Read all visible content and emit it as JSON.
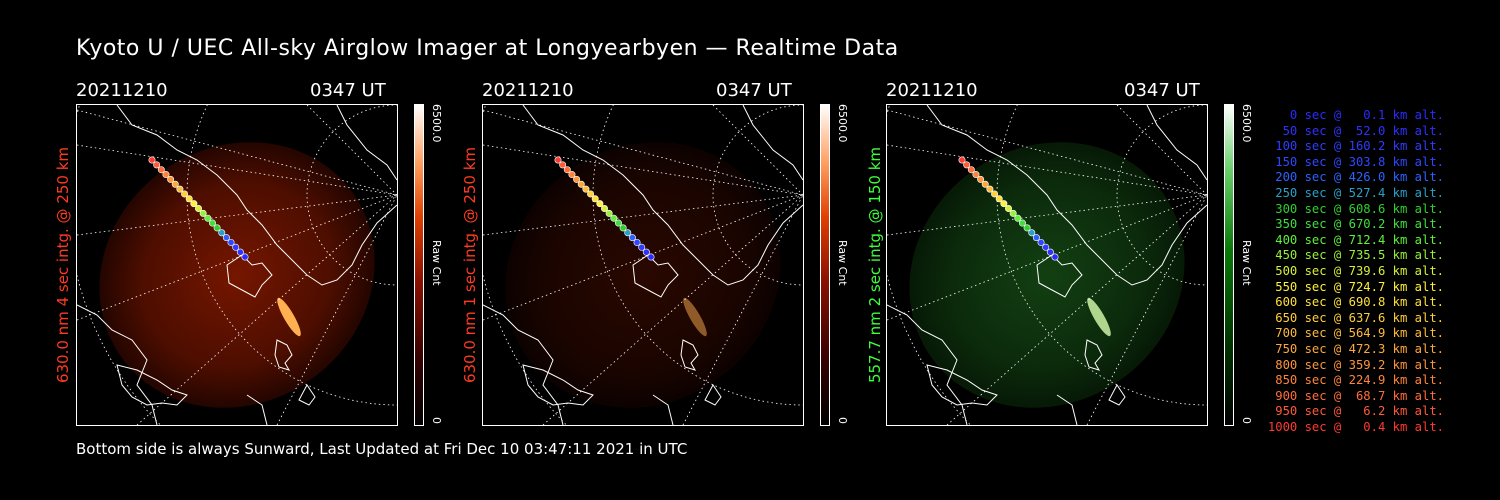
{
  "title": "Kyoto U / UEC All-sky Airglow Imager at Longyearbyen — Realtime Data",
  "footer": "Bottom side is always Sunward, Last Updated at Fri Dec 10 03:47:11 2021 in UTC",
  "panels": [
    {
      "date": "20211210",
      "time": "0347 UT",
      "ylabel": "630.0 nm 4 sec intg. @ 250 km",
      "ylabel_color": "#ff3b1f",
      "cbar_max": "6500.0",
      "cbar_min": "0",
      "cbar_unit": "Raw Cnt",
      "emission": "red",
      "brightness": 0.85
    },
    {
      "date": "20211210",
      "time": "0347 UT",
      "ylabel": "630.0 nm 1 sec intg. @ 250 km",
      "ylabel_color": "#ff3b1f",
      "cbar_max": "6500.0",
      "cbar_min": "0",
      "cbar_unit": "Raw Cnt",
      "emission": "red",
      "brightness": 0.3
    },
    {
      "date": "20211210",
      "time": "0347 UT",
      "ylabel": "557.7 nm 2 sec intg. @ 150 km",
      "ylabel_color": "#3cff3c",
      "cbar_max": "6500.0",
      "cbar_min": "0",
      "cbar_unit": "Raw Cnt",
      "emission": "green",
      "brightness": 0.6
    }
  ],
  "legend": [
    {
      "text": "0 sec @   0.1 km alt.",
      "color": "#2b2bff"
    },
    {
      "text": "50 sec @  52.0 km alt.",
      "color": "#3030ff"
    },
    {
      "text": "100 sec @ 160.2 km alt.",
      "color": "#2f3cff"
    },
    {
      "text": "150 sec @ 303.8 km alt.",
      "color": "#2f48ff"
    },
    {
      "text": "200 sec @ 426.0 km alt.",
      "color": "#2e62ff"
    },
    {
      "text": "250 sec @ 527.4 km alt.",
      "color": "#2aa0c8"
    },
    {
      "text": "300 sec @ 608.6 km alt.",
      "color": "#2fd02f"
    },
    {
      "text": "350 sec @ 670.2 km alt.",
      "color": "#3fe03f"
    },
    {
      "text": "400 sec @ 712.4 km alt.",
      "color": "#5ef03a"
    },
    {
      "text": "450 sec @ 735.5 km alt.",
      "color": "#9af03a"
    },
    {
      "text": "500 sec @ 739.6 km alt.",
      "color": "#d6f03a"
    },
    {
      "text": "550 sec @ 724.7 km alt.",
      "color": "#fff03a"
    },
    {
      "text": "600 sec @ 690.8 km alt.",
      "color": "#ffe03a"
    },
    {
      "text": "650 sec @ 637.6 km alt.",
      "color": "#ffd03a"
    },
    {
      "text": "700 sec @ 564.9 km alt.",
      "color": "#ffbb3a"
    },
    {
      "text": "750 sec @ 472.3 km alt.",
      "color": "#ffa83a"
    },
    {
      "text": "800 sec @ 359.2 km alt.",
      "color": "#ff963a"
    },
    {
      "text": "850 sec @ 224.9 km alt.",
      "color": "#ff843a"
    },
    {
      "text": "900 sec @  68.7 km alt.",
      "color": "#ff6e3a"
    },
    {
      "text": "950 sec @   6.2 km alt.",
      "color": "#ff5a3a"
    },
    {
      "text": "1000 sec @   0.4 km alt.",
      "color": "#ff3a30"
    }
  ]
}
